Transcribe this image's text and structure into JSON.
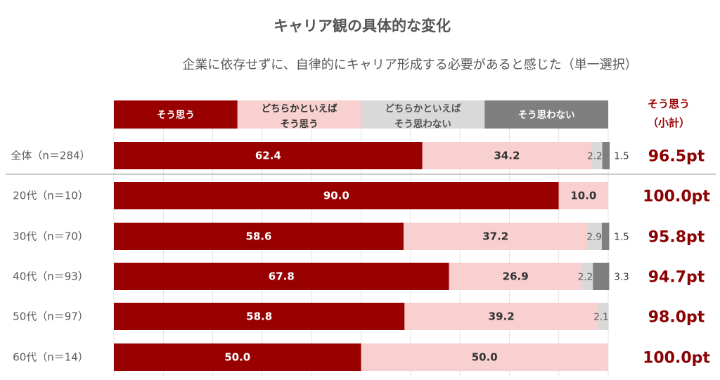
{
  "chart_data": {
    "type": "bar",
    "orientation": "horizontal",
    "stacked": "100%",
    "title": "キャリア観の具体的な変化",
    "subtitle": "企業に依存せずに、自律的にキャリア形成する必要があると感じた（単一選択）",
    "categories": [
      "全体（n＝284）",
      "20代（n＝10）",
      "30代（n＝70）",
      "40代（n＝93）",
      "50代（n＝97）",
      "60代（n＝14）"
    ],
    "series": [
      {
        "name": "そう思う",
        "color": "#990000",
        "values": [
          62.4,
          90.0,
          58.6,
          67.8,
          58.8,
          50.0
        ]
      },
      {
        "name": "どちらかといえば\nそう思う",
        "color": "#f8d0d0",
        "values": [
          34.2,
          10.0,
          37.2,
          26.9,
          39.2,
          50.0
        ]
      },
      {
        "name": "どちらかといえば\nそう思わない",
        "color": "#d9d9d9",
        "values": [
          2.2,
          null,
          2.9,
          2.2,
          2.1,
          null
        ]
      },
      {
        "name": "そう思わない",
        "color": "#7f7f7f",
        "values": [
          1.5,
          null,
          1.5,
          3.3,
          null,
          null
        ]
      }
    ],
    "subtotal": {
      "label": "そう思う\n（小計）",
      "values": [
        "96.5pt",
        "100.0pt",
        "95.8pt",
        "94.7pt",
        "98.0pt",
        "100.0pt"
      ]
    },
    "xlim": [
      0,
      100
    ],
    "grid": true
  }
}
